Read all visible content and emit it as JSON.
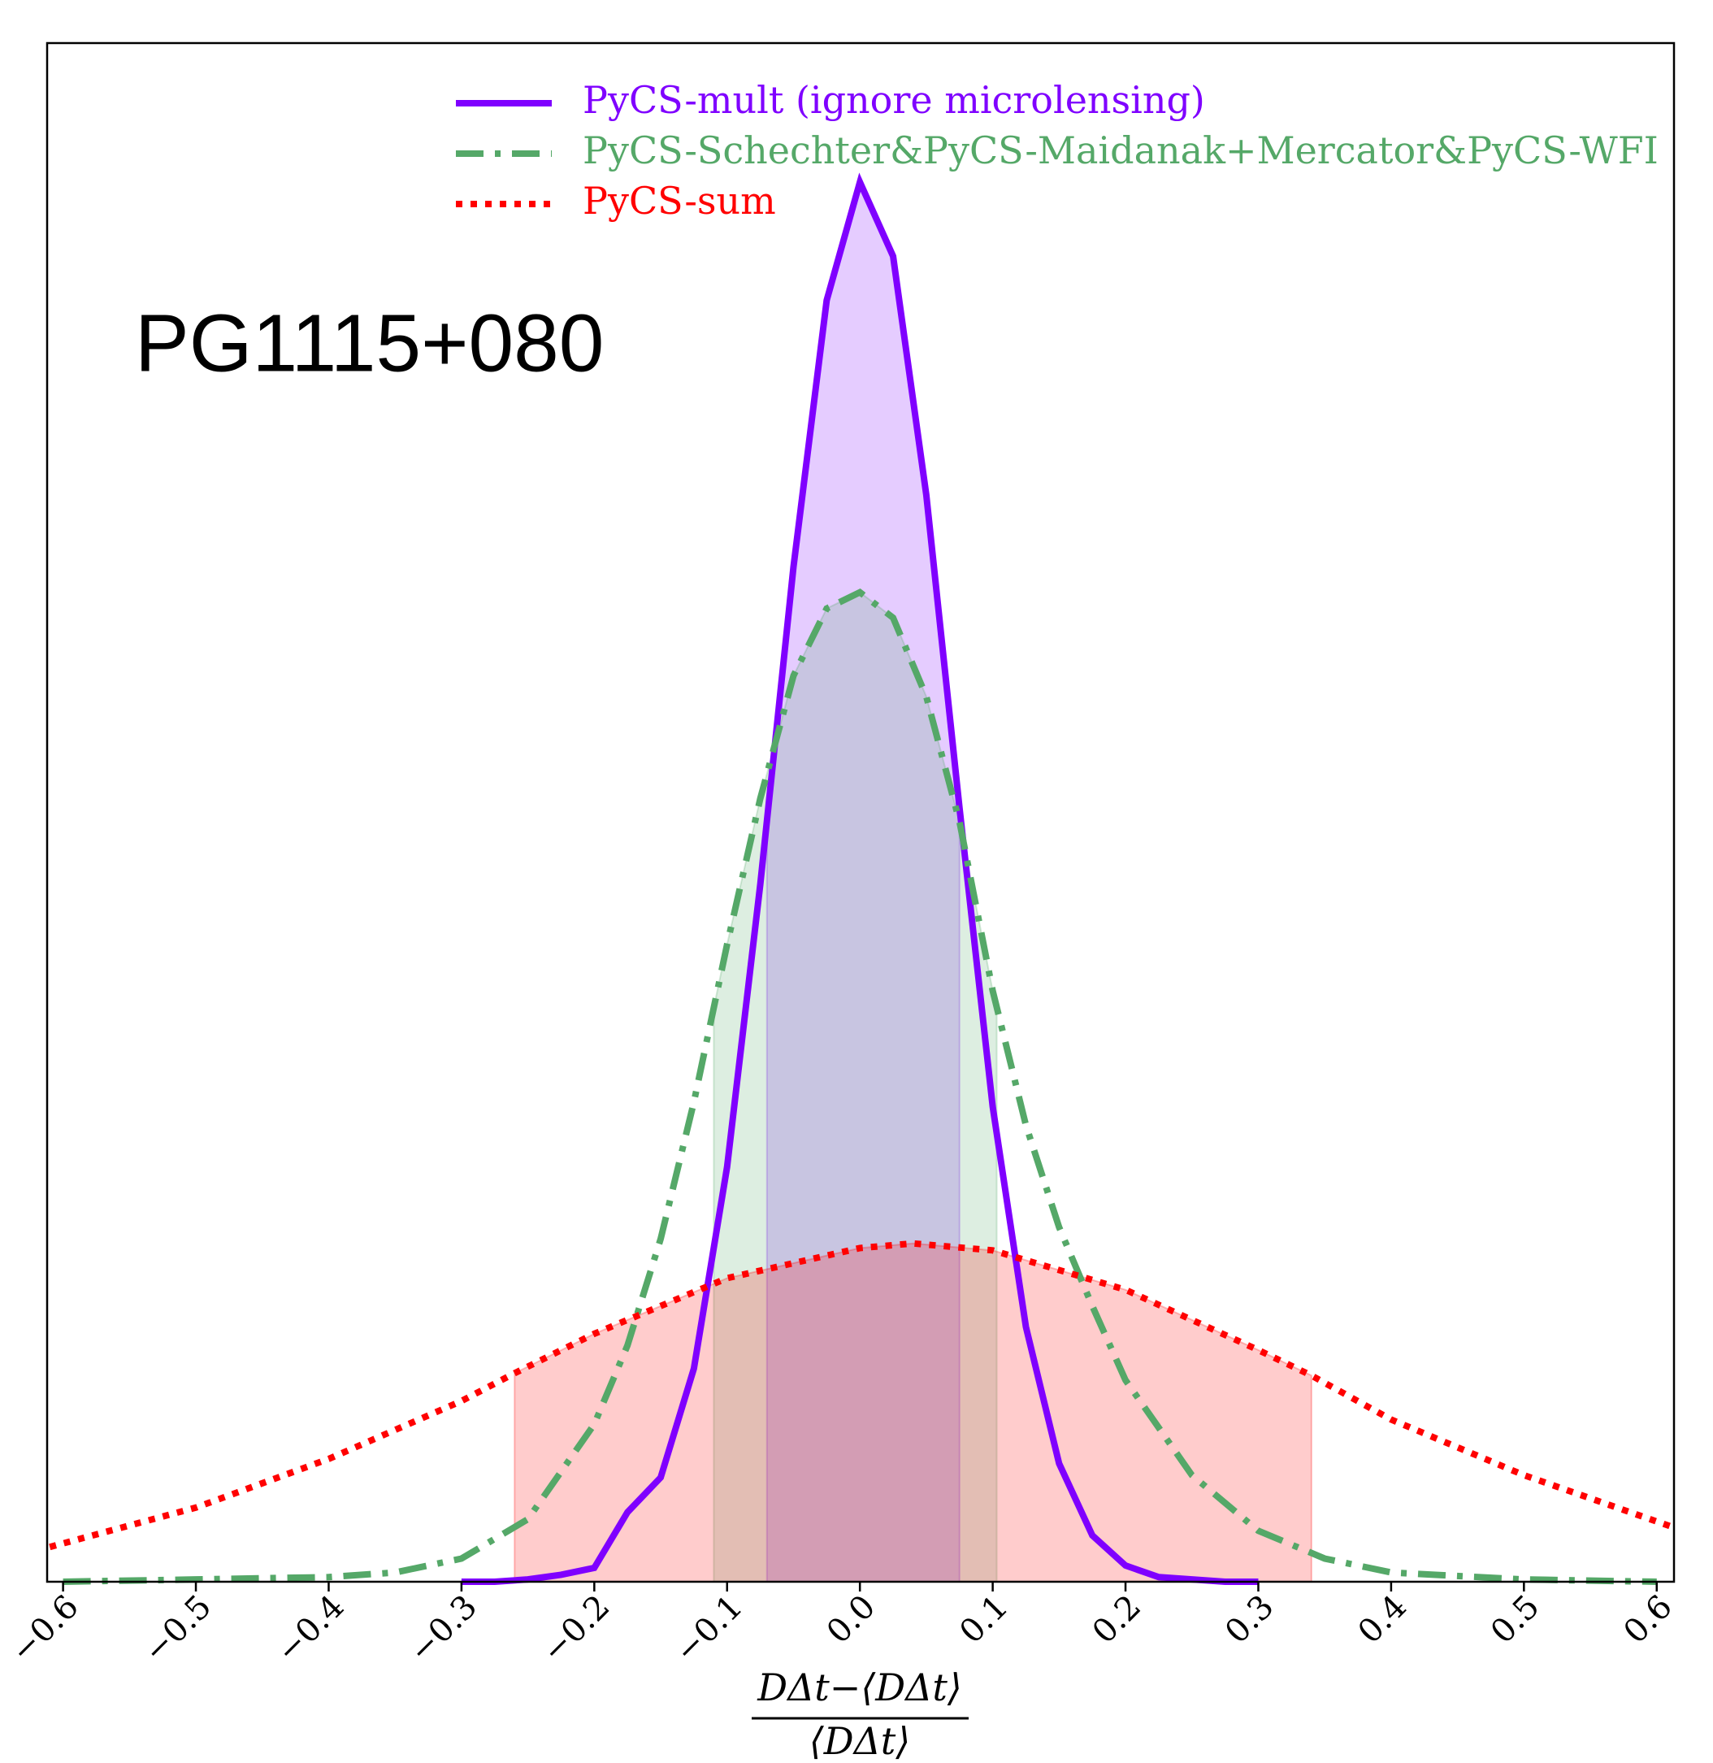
{
  "chart_data": {
    "type": "density",
    "annotation": "PG1115+080",
    "xlabel": {
      "numerator": "DΔt−⟨DΔt⟩",
      "denominator": "⟨DΔt⟩"
    },
    "xlim": [
      -0.612,
      0.613
    ],
    "ylim": [
      0,
      6.64
    ],
    "xticks": [
      {
        "value": -0.6,
        "label": "−0.6"
      },
      {
        "value": -0.5,
        "label": "−0.5"
      },
      {
        "value": -0.4,
        "label": "−0.4"
      },
      {
        "value": -0.3,
        "label": "−0.3"
      },
      {
        "value": -0.2,
        "label": "−0.2"
      },
      {
        "value": -0.1,
        "label": "−0.1"
      },
      {
        "value": 0,
        "label": "0.0"
      },
      0.1,
      0.2,
      0.3,
      0.4,
      0.5,
      0.6
    ],
    "series": [
      {
        "name": "PyCS-mult (ignore microlensing)",
        "color": "#7f00ff",
        "linestyle": "solid",
        "shade": [
          -0.07,
          0.075
        ],
        "x": [
          -0.3,
          -0.275,
          -0.25,
          -0.225,
          -0.2,
          -0.175,
          -0.15,
          -0.125,
          -0.1,
          -0.075,
          -0.05,
          -0.025,
          0,
          0.025,
          0.05,
          0.075,
          0.1,
          0.125,
          0.15,
          0.175,
          0.2,
          0.225,
          0.25,
          0.275,
          0.3
        ],
        "values": [
          0.0,
          0.0,
          0.01,
          0.03,
          0.06,
          0.3,
          0.45,
          0.92,
          1.79,
          3.01,
          4.38,
          5.53,
          6.04,
          5.72,
          4.69,
          3.34,
          2.05,
          1.1,
          0.51,
          0.2,
          0.07,
          0.02,
          0.01,
          0.0,
          0.0
        ]
      },
      {
        "name": "PyCS-Schechter&PyCS-Maidanak+Mercator&PyCS-WFI",
        "color": "#55a868",
        "linestyle": "dashdot",
        "shade": [
          -0.11,
          0.103
        ],
        "x": [
          -0.6,
          -0.5,
          -0.4,
          -0.35,
          -0.3,
          -0.25,
          -0.2,
          -0.175,
          -0.15,
          -0.125,
          -0.1,
          -0.075,
          -0.05,
          -0.025,
          0,
          0.025,
          0.05,
          0.075,
          0.1,
          0.125,
          0.15,
          0.175,
          0.2,
          0.25,
          0.3,
          0.35,
          0.4,
          0.5,
          0.6
        ],
        "values": [
          0.0,
          0.01,
          0.02,
          0.04,
          0.1,
          0.27,
          0.68,
          1.02,
          1.48,
          2.07,
          2.75,
          3.38,
          3.91,
          4.2,
          4.27,
          4.16,
          3.82,
          3.28,
          2.55,
          1.97,
          1.53,
          1.19,
          0.87,
          0.46,
          0.22,
          0.1,
          0.04,
          0.01,
          0.0
        ]
      },
      {
        "name": "PyCS-sum",
        "color": "#ff0000",
        "linestyle": "dotted",
        "shade": [
          -0.26,
          0.34
        ],
        "x": [
          -0.61,
          -0.5,
          -0.4,
          -0.3,
          -0.26,
          -0.2,
          -0.1,
          0,
          0.04,
          0.1,
          0.2,
          0.3,
          0.34,
          0.4,
          0.5,
          0.61
        ],
        "values": [
          0.15,
          0.32,
          0.53,
          0.78,
          0.9,
          1.07,
          1.31,
          1.44,
          1.46,
          1.43,
          1.26,
          1.0,
          0.89,
          0.7,
          0.46,
          0.24
        ]
      }
    ]
  }
}
